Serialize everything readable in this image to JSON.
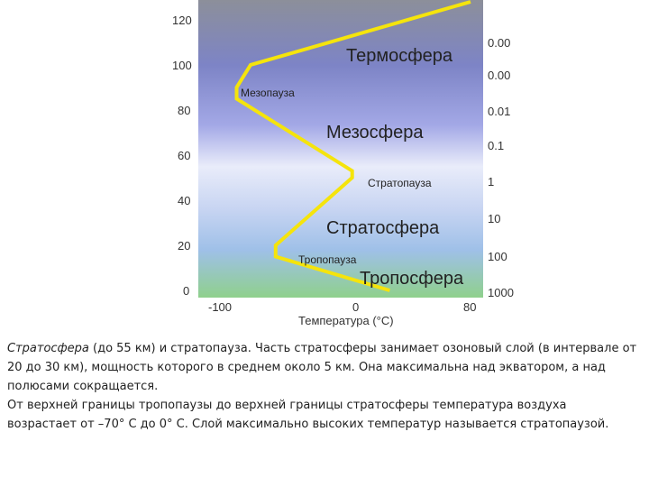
{
  "diagram": {
    "altitude_ticks": [
      "120",
      "100",
      "80",
      "60",
      "40",
      "20",
      "0"
    ],
    "pressure_ticks": [
      "0.00",
      "0.00",
      "0.01",
      "0.1",
      "1",
      "10",
      "100",
      "1000"
    ],
    "temperature_ticks": [
      "-100",
      "0",
      "80"
    ],
    "xlabel": "Температура (°С)",
    "layers": {
      "thermosphere": "Термосфера",
      "mesopause": "Мезопауза",
      "mesosphere": "Мезосфера",
      "stratopause": "Стратопауза",
      "stratosphere": "Стратосфера",
      "tropopause": "Тропопауза",
      "troposphere": "Тропосфера"
    },
    "profile_color": "#f5e40c",
    "profile": [
      {
        "t": 22,
        "h": 0
      },
      {
        "t": -60,
        "h": 15
      },
      {
        "t": -60,
        "h": 20
      },
      {
        "t": -5,
        "h": 50
      },
      {
        "t": -5,
        "h": 53
      },
      {
        "t": -88,
        "h": 85
      },
      {
        "t": -88,
        "h": 90
      },
      {
        "t": -78,
        "h": 100
      },
      {
        "t": 80,
        "h": 128
      }
    ]
  },
  "caption": {
    "term": "Стратосфера",
    "line1_rest": " (до 55 км) и стратопауза. Часть стратосферы занимает озоновый слой (в интервале от 20 до 30 км), мощность которого в среднем около 5 км. Она максимальна над экватором, а над полюсами сокращается.",
    "line2": "От верхней границы тропопаузы до верхней границы стратосферы температура воздуха возрастает от –70° С до 0° С. Слой максимально высоких температур называется стратопаузой."
  }
}
